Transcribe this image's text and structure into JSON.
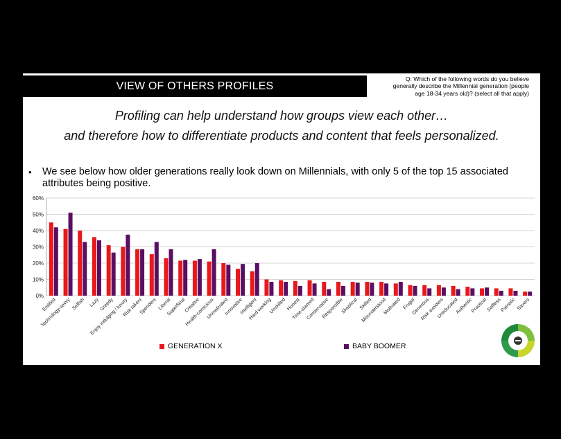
{
  "header": {
    "title": "VIEW OF OTHERS PROFILES",
    "question_line1": "Q:  Which of the following words do you believe",
    "question_line2": "generally describe the Millennial generation (people",
    "question_line3": "age 18-34 years old)?  (select all that apply)"
  },
  "taglines": {
    "line1": "Profiling can help understand how groups view each other…",
    "line2": "and therefore how to differentiate products and content that feels personalized."
  },
  "bullet": {
    "symbol": "•",
    "text": "We see below how older generations really look down on Millennials, with only 5 of the top 15 associated attributes being positive."
  },
  "colors": {
    "gen_x": "#e8181b",
    "boomer": "#5b0f62"
  },
  "chart_data": {
    "type": "bar",
    "categories": [
      "Entitled",
      "Technology-savvy",
      "Selfish",
      "Lazy",
      "Greedy",
      "Enjoy indulging / luxury",
      "Risk takers",
      "Spenders",
      "Liberal",
      "Superficial",
      "Creative",
      "Health-conscious",
      "Unmotivated",
      "Innovative",
      "Intelligent",
      "Hard working",
      "Unskilled",
      "Honest",
      "Time-starved",
      "Conservative",
      "Responsible",
      "Skeptical",
      "Skilled",
      "Misunderstood",
      "Motivated",
      "Frugal",
      "Generous",
      "Risk avoiders",
      "Uneducated",
      "Authentic",
      "Practical",
      "Selfless",
      "Patriotic",
      "Savers"
    ],
    "series": [
      {
        "name": "GENERATION X",
        "color": "#e8181b",
        "values": [
          45,
          41,
          40,
          36,
          31,
          30,
          28.5,
          25.5,
          23,
          21.5,
          21.5,
          21,
          20,
          16.5,
          15,
          10,
          9.5,
          9,
          9.5,
          8.5,
          8.5,
          8.5,
          8.5,
          8.5,
          7.5,
          6.5,
          6.5,
          6.5,
          6,
          5.5,
          4.5,
          4.5,
          4.5,
          2.5
        ]
      },
      {
        "name": "BABY BOOMER",
        "color": "#5b0f62",
        "values": [
          42,
          51,
          33,
          34,
          26.5,
          37.5,
          28.5,
          33,
          28.5,
          22,
          22.5,
          28.5,
          19,
          19.5,
          20,
          8.5,
          8.5,
          6,
          7.5,
          4,
          6,
          8,
          8,
          7.5,
          8.5,
          6,
          4.5,
          5,
          4,
          4.5,
          5,
          3,
          3,
          2.5
        ]
      }
    ],
    "yticks": [
      "0%",
      "10%",
      "20%",
      "30%",
      "40%",
      "50%",
      "60%"
    ],
    "ylim": [
      0,
      60
    ],
    "grid": true,
    "legend": "bottom"
  }
}
